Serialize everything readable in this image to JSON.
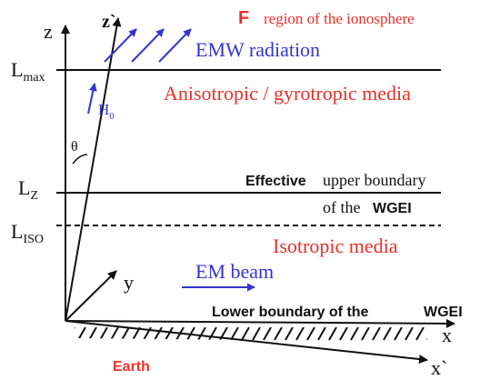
{
  "labels": {
    "z": "z",
    "z_prime": "z`",
    "f": "F",
    "region": "region of the ionosphere",
    "emw": "EMW radiation",
    "l_max": "L",
    "l_max_sub": "max",
    "anisotropic": "Anisotropic / gyrotropic media",
    "h": "H",
    "h_sub": "0",
    "theta": "θ",
    "l_z": "L",
    "l_z_sub": "Z",
    "effective": "Effective",
    "upper": "upper boundary",
    "of_the": "of the",
    "wgei_upper": "WGEI",
    "l_iso": "L",
    "l_iso_sub": "ISO",
    "isotropic": "Isotropic media",
    "em_beam": "EM beam",
    "y": "y",
    "lower": "Lower boundary of the",
    "wgei_lower": "WGEI",
    "x": "x",
    "x_prime": "x`",
    "earth": "Earth"
  }
}
